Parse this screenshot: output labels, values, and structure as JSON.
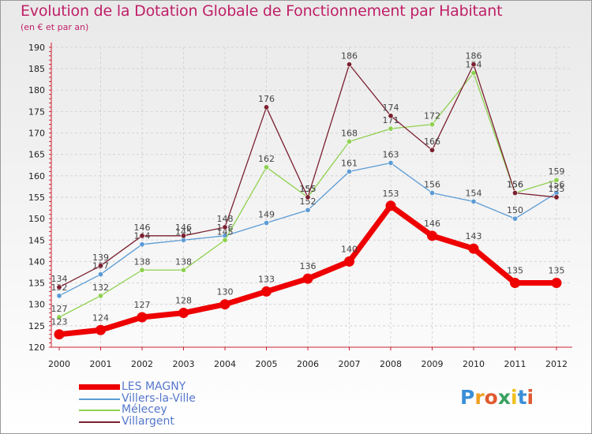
{
  "title": "Evolution de la Dotation Globale de Fonctionnement par Habitant",
  "subtitle": "(en € et par an)",
  "logo": {
    "letters": [
      "P",
      "r",
      "o",
      "x",
      "i",
      "t",
      "i"
    ],
    "colors": [
      "#3a8fd8",
      "#f0a020",
      "#e05a30",
      "#3aa060",
      "#f0c020",
      "#3a8fd8",
      "#e05a30"
    ]
  },
  "chart_data": {
    "type": "line",
    "title": "Evolution de la Dotation Globale de Fonctionnement par Habitant",
    "xlabel": "",
    "ylabel": "(en € et par an)",
    "ylim": [
      120,
      190
    ],
    "yticks": [
      "120",
      "125",
      "130",
      "135",
      "140",
      "145",
      "150",
      "155",
      "160",
      "165",
      "170",
      "175",
      "180",
      "185",
      "190"
    ],
    "categories": [
      "2000",
      "2001",
      "2002",
      "2003",
      "2004",
      "2005",
      "2006",
      "2007",
      "2008",
      "2009",
      "2010",
      "2011",
      "2012"
    ],
    "series": [
      {
        "name": "Villers-la-Ville",
        "color": "#5b9bd5",
        "width": 1.3,
        "values": [
          132,
          137,
          144,
          145,
          146,
          149,
          152,
          161,
          163,
          156,
          154,
          150,
          156
        ],
        "labels": [
          "132",
          "137",
          "144",
          "145",
          "146",
          "149",
          "152",
          "161",
          "163",
          "156",
          "154",
          "150",
          "156"
        ]
      },
      {
        "name": "Mélecey",
        "color": "#8fd14f",
        "width": 1.3,
        "values": [
          127,
          132,
          138,
          138,
          145,
          162,
          155,
          168,
          171,
          172,
          184,
          156,
          159
        ],
        "labels": [
          "127",
          "132",
          "138",
          "138",
          "145",
          "162",
          "155",
          "168",
          "171",
          "172",
          "184",
          "156",
          "159"
        ]
      },
      {
        "name": "Villargent",
        "color": "#7a2030",
        "width": 1.3,
        "values": [
          134,
          139,
          146,
          146,
          148,
          176,
          155,
          186,
          174,
          166,
          186,
          156,
          155
        ],
        "labels": [
          "134",
          "139",
          "146",
          "146",
          "148",
          "176",
          "155",
          "186",
          "174",
          "166",
          "186",
          "156",
          "155"
        ]
      },
      {
        "name": "LES MAGNY",
        "color": "#ee0000",
        "width": 7,
        "values": [
          123,
          124,
          127,
          128,
          130,
          133,
          136,
          140,
          153,
          146,
          143,
          135,
          135
        ],
        "labels": [
          "123",
          "124",
          "127",
          "128",
          "130",
          "133",
          "136",
          "140",
          "153",
          "146",
          "143",
          "135",
          "135"
        ]
      }
    ],
    "legend": [
      {
        "name": "LES MAGNY",
        "color": "#ee0000",
        "thick": true
      },
      {
        "name": "Villers-la-Ville",
        "color": "#5b9bd5",
        "thick": false
      },
      {
        "name": "Mélecey",
        "color": "#8fd14f",
        "thick": false
      },
      {
        "name": "Villargent",
        "color": "#7a2030",
        "thick": false
      }
    ]
  }
}
